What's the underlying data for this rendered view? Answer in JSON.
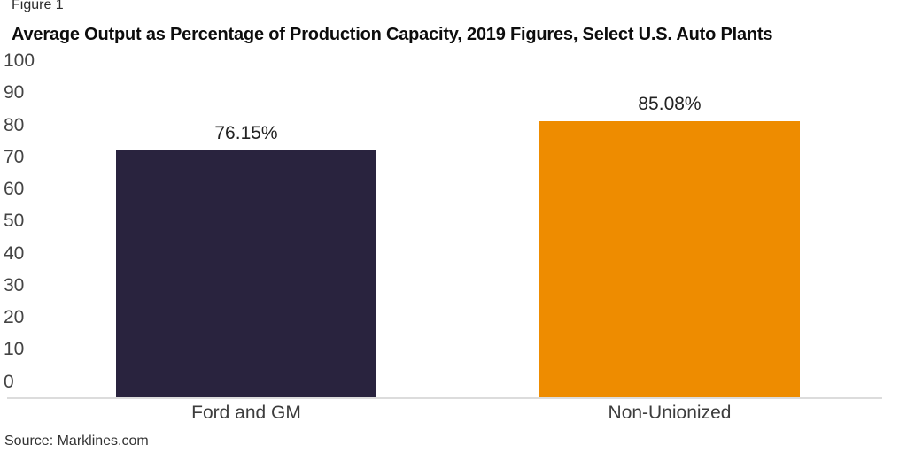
{
  "header": {
    "figure_label": "Figure 1",
    "title": "Average Output as Percentage of Production Capacity, 2019 Figures, Select U.S. Auto Plants"
  },
  "footer": {
    "source": "Source: Marklines.com"
  },
  "colors": {
    "bar_ford_gm": "#29233E",
    "bar_non_unionized": "#EE8C00",
    "axis_line": "#DCDCDC"
  },
  "chart_data": {
    "type": "bar",
    "title": "Average Output as Percentage of Production Capacity, 2019 Figures, Select U.S. Auto Plants",
    "figure_label": "Figure 1",
    "categories": [
      "Ford and GM",
      "Non-Unionized"
    ],
    "values": [
      76.15,
      85.08
    ],
    "value_labels": [
      "76.15%",
      "85.08%"
    ],
    "bar_colors": [
      "#29233E",
      "#EE8C00"
    ],
    "xlabel": "",
    "ylabel": "",
    "ylim": [
      0,
      100
    ],
    "yticks": [
      0,
      10,
      20,
      30,
      40,
      50,
      60,
      70,
      80,
      90,
      100
    ],
    "grid": false,
    "legend": false,
    "source": "Source: Marklines.com"
  }
}
